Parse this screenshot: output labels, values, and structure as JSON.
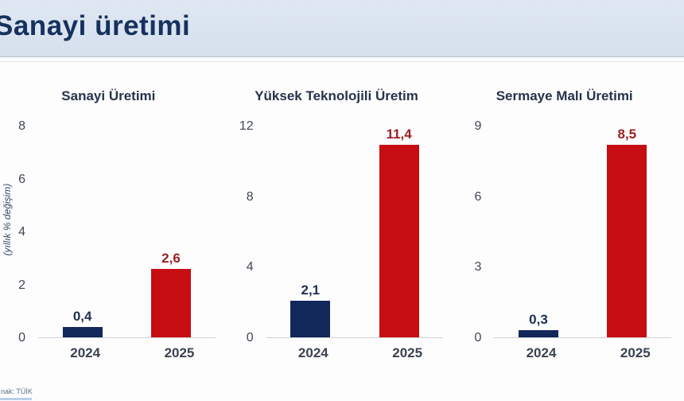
{
  "page": {
    "title": "Sanayi üretimi",
    "source_note": "nak: TÜİK"
  },
  "axis_label": "(yıllık % değişim)",
  "colors": {
    "header_bg": "#d9e3ef",
    "title_text": "#16315e",
    "navy_bar": "#12275a",
    "red_bar": "#c60d12",
    "navy_label": "#1d2f52",
    "red_label": "#9e1f22",
    "axis_line": "#cfd2d6"
  },
  "chart_data": [
    {
      "type": "bar",
      "title": "Sanayi Üretimi",
      "categories": [
        "2024",
        "2025"
      ],
      "values": [
        0.4,
        2.6
      ],
      "value_labels": [
        "0,4",
        "2,6"
      ],
      "ylabel": "(yıllık % değişim)",
      "ylim": [
        0,
        8
      ],
      "yticks": [
        0,
        2,
        4,
        6,
        8
      ],
      "grid": false,
      "legend": "none",
      "bar_colors": [
        "#12275a",
        "#c60d12"
      ],
      "label_colors": [
        "#1d2f52",
        "#9e1f22"
      ]
    },
    {
      "type": "bar",
      "title": "Yüksek Teknolojili Üretim",
      "categories": [
        "2024",
        "2025"
      ],
      "values": [
        2.1,
        11.4
      ],
      "value_labels": [
        "2,1",
        "11,4"
      ],
      "ylabel": "",
      "ylim": [
        0,
        12
      ],
      "yticks": [
        0,
        4,
        8,
        12
      ],
      "grid": false,
      "legend": "none",
      "bar_colors": [
        "#12275a",
        "#c60d12"
      ],
      "label_colors": [
        "#1d2f52",
        "#9e1f22"
      ]
    },
    {
      "type": "bar",
      "title": "Sermaye Malı Üretimi",
      "categories": [
        "2024",
        "2025"
      ],
      "values": [
        0.3,
        8.5
      ],
      "value_labels": [
        "0,3",
        "8,5"
      ],
      "ylabel": "",
      "ylim": [
        0,
        9
      ],
      "yticks": [
        0,
        3,
        6,
        9
      ],
      "grid": false,
      "legend": "none",
      "bar_colors": [
        "#12275a",
        "#c60d12"
      ],
      "label_colors": [
        "#1d2f52",
        "#9e1f22"
      ]
    }
  ]
}
